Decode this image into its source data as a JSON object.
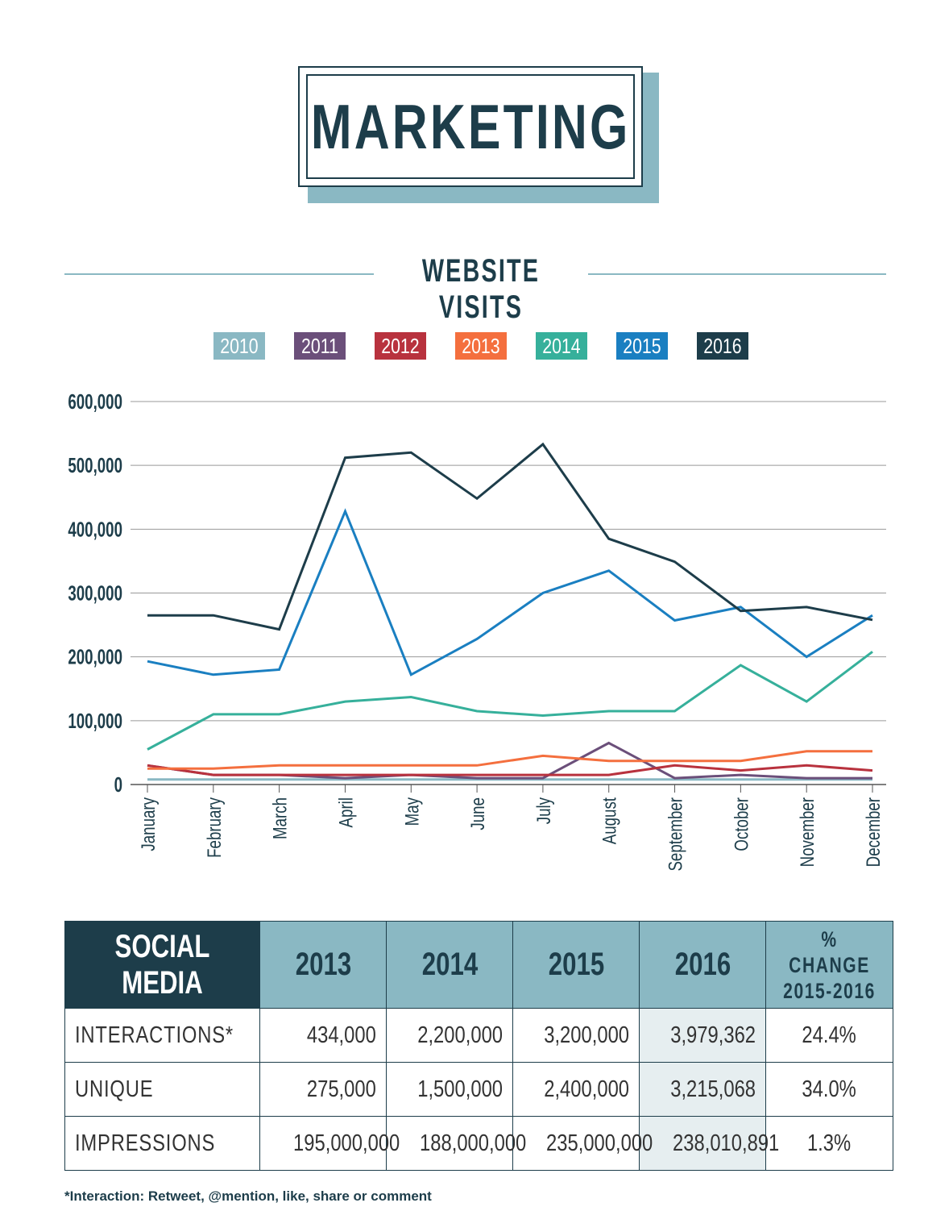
{
  "page": {
    "title": "MARKETING",
    "section_title": "WEBSITE VISITS"
  },
  "legend": [
    {
      "label": "2010",
      "color": "#8ab8c3"
    },
    {
      "label": "2011",
      "color": "#6b4f7a"
    },
    {
      "label": "2012",
      "color": "#b8323e"
    },
    {
      "label": "2013",
      "color": "#f46f3e"
    },
    {
      "label": "2014",
      "color": "#36b09b"
    },
    {
      "label": "2015",
      "color": "#1a7fc1"
    },
    {
      "label": "2016",
      "color": "#1d3d4a"
    }
  ],
  "chart_data": {
    "type": "line",
    "title": "WEBSITE VISITS",
    "categories": [
      "January",
      "February",
      "March",
      "April",
      "May",
      "June",
      "July",
      "August",
      "September",
      "October",
      "November",
      "December"
    ],
    "ylim": [
      0,
      600000
    ],
    "yticks": [
      0,
      100000,
      200000,
      300000,
      400000,
      500000,
      600000
    ],
    "ytick_labels": [
      "0",
      "100,000",
      "200,000",
      "300,000",
      "400,000",
      "500,000",
      "600,000"
    ],
    "grid": true,
    "legend_position": "top",
    "series": [
      {
        "name": "2010",
        "color": "#8ab8c3",
        "values": [
          8000,
          8000,
          8000,
          8000,
          8000,
          8000,
          8000,
          8000,
          8000,
          8000,
          8000,
          8000
        ]
      },
      {
        "name": "2011",
        "color": "#6b4f7a",
        "values": [
          30000,
          15000,
          15000,
          10000,
          15000,
          10000,
          10000,
          65000,
          10000,
          15000,
          10000,
          10000
        ]
      },
      {
        "name": "2012",
        "color": "#b8323e",
        "values": [
          30000,
          15000,
          15000,
          15000,
          15000,
          15000,
          15000,
          15000,
          30000,
          22000,
          30000,
          22000
        ]
      },
      {
        "name": "2013",
        "color": "#f46f3e",
        "values": [
          25000,
          25000,
          30000,
          30000,
          30000,
          30000,
          45000,
          37000,
          37000,
          37000,
          52000,
          52000
        ]
      },
      {
        "name": "2014",
        "color": "#36b09b",
        "values": [
          55000,
          110000,
          110000,
          130000,
          137000,
          115000,
          108000,
          115000,
          115000,
          187000,
          130000,
          208000
        ]
      },
      {
        "name": "2015",
        "color": "#1a7fc1",
        "values": [
          193000,
          172000,
          180000,
          428000,
          172000,
          228000,
          300000,
          335000,
          257000,
          278000,
          200000,
          265000
        ]
      },
      {
        "name": "2016",
        "color": "#1d3d4a",
        "values": [
          265000,
          265000,
          243000,
          512000,
          520000,
          448000,
          533000,
          385000,
          349000,
          272000,
          278000,
          258000
        ]
      }
    ]
  },
  "table": {
    "title": "SOCIAL MEDIA",
    "columns": [
      "2013",
      "2014",
      "2015",
      "2016"
    ],
    "change_header_line1": "% CHANGE",
    "change_header_line2": "2015-2016",
    "rows": [
      {
        "label": "INTERACTIONS*",
        "values": [
          "434,000",
          "2,200,000",
          "3,200,000",
          "3,979,362"
        ],
        "change": "24.4%"
      },
      {
        "label": "UNIQUE",
        "values": [
          "275,000",
          "1,500,000",
          "2,400,000",
          "3,215,068"
        ],
        "change": "34.0%"
      },
      {
        "label": "IMPRESSIONS",
        "values": [
          "195,000,000",
          "188,000,000",
          "235,000,000",
          "238,010,891"
        ],
        "change": "1.3%"
      }
    ]
  },
  "footnote": "*Interaction: Retweet, @mention, like, share or comment"
}
